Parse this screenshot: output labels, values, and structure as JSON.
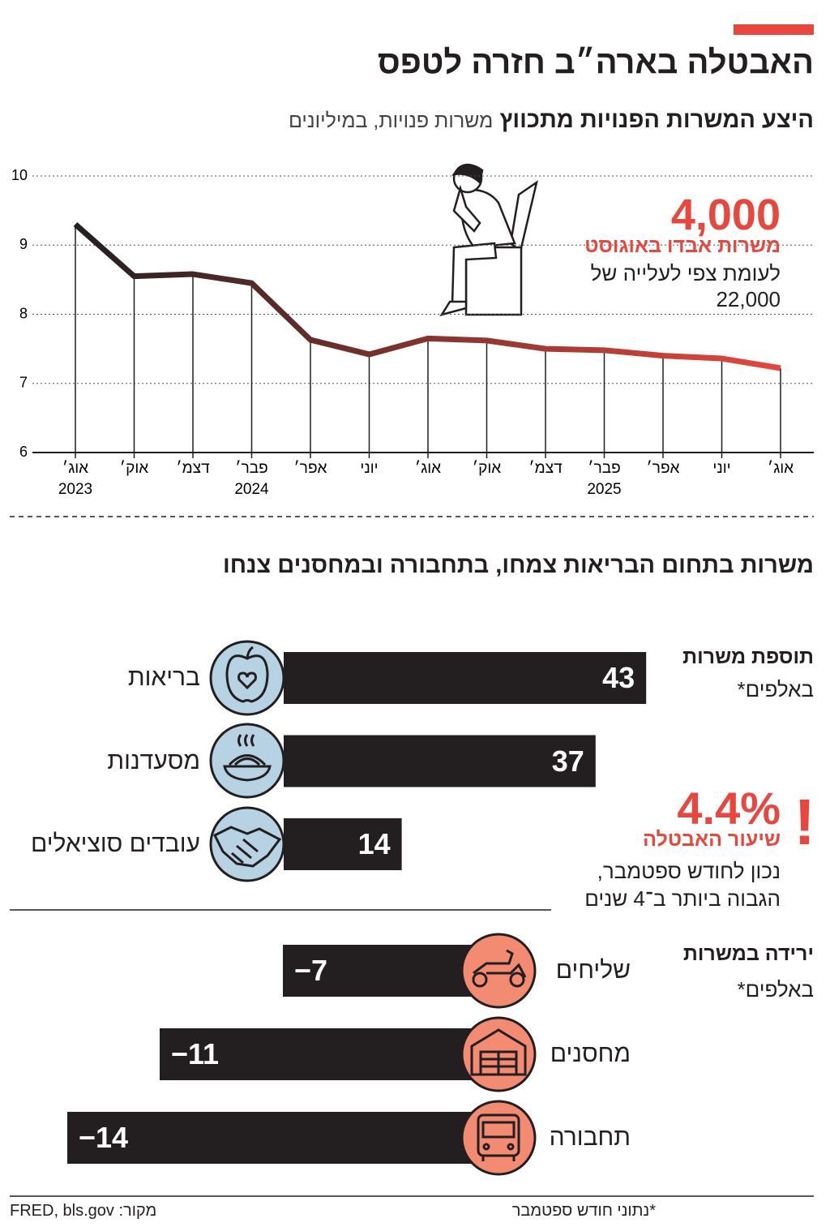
{
  "title": "האבטלה בארה״ב חזרה לטפס",
  "chart_data": [
    {
      "type": "line",
      "title": "היצע המשרות הפנויות מתכווץ",
      "subtitle": "משרות פנויות, במיליונים",
      "categories": [
        "אוג׳",
        "אוק׳",
        "דצמ׳",
        "פבר׳",
        "אפר׳",
        "יוני",
        "אוג׳",
        "אוק׳",
        "דצמ׳",
        "פבר׳",
        "אפר׳",
        "יוני",
        "אוג׳"
      ],
      "years": [
        "2023",
        null,
        null,
        "2024",
        null,
        null,
        null,
        null,
        null,
        "2025",
        null,
        null,
        null
      ],
      "values": [
        9.3,
        8.55,
        8.58,
        8.45,
        7.63,
        7.42,
        7.65,
        7.62,
        7.5,
        7.48,
        7.4,
        7.36,
        7.22
      ],
      "ylim": [
        6,
        10
      ],
      "yticks": [
        6,
        7,
        8,
        9,
        10
      ],
      "grid": true,
      "color_start": "#231f20",
      "color_end": "#e8473d",
      "annotation": {
        "value": "4,000",
        "text": "משרות אבדו באוגוסט",
        "note": "לעומת צפי לעלייה של",
        "expected": "22,000"
      }
    },
    {
      "type": "bar",
      "title": "משרות בתחום הבריאות צמחו, בתחבורה ובמחסנים צנחו",
      "label": "תוספת משרות",
      "unit": "באלפים*",
      "categories": [
        "בריאות",
        "מסעדנות",
        "עובדים סוציאלים"
      ],
      "values": [
        43,
        37,
        14
      ],
      "color": "#231f20",
      "icon_color": "#b7d3e3"
    },
    {
      "type": "bar",
      "label": "ירידה במשרות",
      "unit": "באלפים*",
      "categories": [
        "שליחים",
        "מחסנים",
        "תחבורה"
      ],
      "values": [
        -7,
        -11,
        -14
      ],
      "value_labels": [
        "−7",
        "−11",
        "−14"
      ],
      "color": "#231f20",
      "icon_color": "#f28b72"
    }
  ],
  "callout": {
    "value": "4.4%",
    "title": "שיעור האבטלה",
    "lines": [
      "נכון לחודש ספטמבר,",
      "הגבוה ביותר ב־4 שנים"
    ]
  },
  "footnote": "*נתוני חודש ספטמבר",
  "source": "מקור: FRED, bls.gov"
}
